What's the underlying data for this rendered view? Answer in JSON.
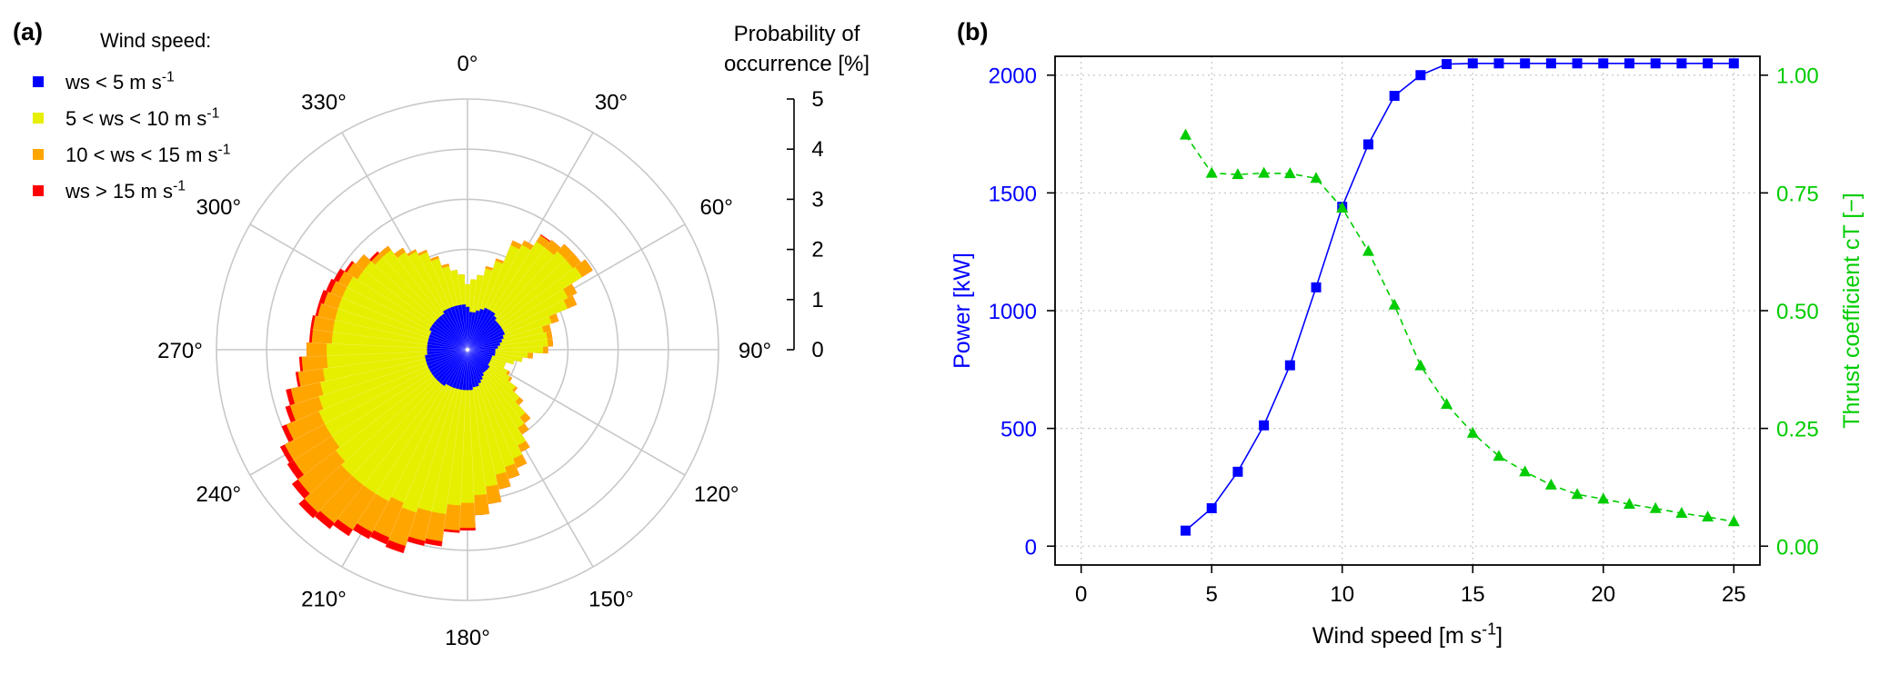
{
  "panel_a_label": "(a)",
  "panel_b_label": "(b)",
  "chart_data": [
    {
      "type": "wind-rose",
      "panel": "(a)",
      "legend_title": "Wind speed:",
      "legend": [
        {
          "name": "ws < 5 m s-1",
          "color": "#0000ff",
          "base": "ws < 5 m s",
          "sup": "-1"
        },
        {
          "name": "5 < ws < 10 m s-1",
          "color": "#e6ef00",
          "base": "5 < ws < 10 m s",
          "sup": "-1"
        },
        {
          "name": "10 < ws < 15 m s-1",
          "color": "#ffa500",
          "base": "10 < ws < 15 m s",
          "sup": "-1"
        },
        {
          "name": "ws > 15 m s-1",
          "color": "#ff0000",
          "base": "ws > 15 m s",
          "sup": "-1"
        }
      ],
      "scale_title_line1": "Probability of",
      "scale_title_line2": "occurrence [%]",
      "radial_range": [
        0,
        5
      ],
      "radial_ticks": [
        0,
        1,
        2,
        3,
        4,
        5
      ],
      "direction_labels": [
        "0°",
        "30°",
        "60°",
        "90°",
        "120°",
        "150°",
        "180°",
        "210°",
        "240°",
        "270°",
        "300°",
        "330°"
      ],
      "direction_angles": [
        0,
        30,
        60,
        90,
        120,
        150,
        180,
        210,
        240,
        270,
        300,
        330
      ],
      "sector_width_deg": 5,
      "sector_directions": [
        0,
        5,
        10,
        15,
        20,
        25,
        30,
        35,
        40,
        45,
        50,
        55,
        60,
        65,
        70,
        75,
        80,
        85,
        90,
        95,
        100,
        105,
        110,
        115,
        120,
        125,
        130,
        135,
        140,
        145,
        150,
        155,
        160,
        165,
        170,
        175,
        180,
        185,
        190,
        195,
        200,
        205,
        210,
        215,
        220,
        225,
        230,
        235,
        240,
        245,
        250,
        255,
        260,
        265,
        270,
        275,
        280,
        285,
        290,
        295,
        300,
        305,
        310,
        315,
        320,
        325,
        330,
        335,
        340,
        345,
        350,
        355
      ],
      "cumulative_series": [
        {
          "name": "ws < 5 m s-1",
          "color": "#0000ff",
          "values": [
            0.85,
            0.75,
            0.75,
            0.8,
            0.85,
            0.9,
            0.9,
            0.9,
            0.85,
            0.8,
            0.8,
            0.8,
            0.8,
            0.8,
            0.75,
            0.7,
            0.65,
            0.6,
            0.55,
            0.55,
            0.55,
            0.5,
            0.5,
            0.5,
            0.5,
            0.5,
            0.55,
            0.55,
            0.55,
            0.55,
            0.6,
            0.65,
            0.7,
            0.75,
            0.75,
            0.8,
            0.8,
            0.8,
            0.8,
            0.8,
            0.8,
            0.8,
            0.8,
            0.85,
            0.85,
            0.85,
            0.85,
            0.85,
            0.85,
            0.85,
            0.85,
            0.85,
            0.85,
            0.8,
            0.8,
            0.8,
            0.8,
            0.8,
            0.8,
            0.8,
            0.85,
            0.85,
            0.85,
            0.85,
            0.85,
            0.85,
            0.9,
            0.9,
            0.9,
            0.9,
            0.9,
            0.9
          ]
        },
        {
          "name": "5 < ws < 10 m s-1",
          "color": "#e6ef00",
          "values": [
            1.3,
            1.4,
            1.5,
            1.65,
            1.85,
            2.25,
            2.35,
            2.55,
            2.55,
            2.65,
            2.65,
            2.7,
            2.25,
            2.15,
            1.75,
            1.55,
            1.6,
            1.6,
            1.5,
            1.2,
            1.1,
            0.95,
            0.8,
            0.8,
            0.9,
            1.0,
            1.2,
            1.4,
            1.7,
            1.85,
            2.15,
            2.35,
            2.45,
            2.55,
            2.75,
            2.9,
            3.05,
            3.1,
            3.3,
            3.3,
            3.4,
            3.3,
            3.4,
            3.4,
            3.4,
            3.4,
            3.3,
            3.2,
            3.2,
            3.2,
            3.1,
            3.0,
            2.9,
            2.8,
            2.8,
            2.7,
            2.7,
            2.7,
            2.7,
            2.7,
            2.7,
            2.6,
            2.6,
            2.5,
            2.5,
            2.3,
            2.2,
            2.1,
            1.9,
            1.7,
            1.6,
            1.5
          ]
        },
        {
          "name": "10 < ws < 15 m s-1",
          "color": "#ffa500",
          "values": [
            1.3,
            1.4,
            1.5,
            1.7,
            1.9,
            2.35,
            2.45,
            2.7,
            2.75,
            2.85,
            2.85,
            2.95,
            2.45,
            2.35,
            1.9,
            1.7,
            1.7,
            1.7,
            1.6,
            1.3,
            1.1,
            0.95,
            0.8,
            0.8,
            0.95,
            1.05,
            1.25,
            1.5,
            1.85,
            2.0,
            2.3,
            2.55,
            2.7,
            2.85,
            3.1,
            3.3,
            3.55,
            3.6,
            3.85,
            3.9,
            4.1,
            4.05,
            4.1,
            4.25,
            4.35,
            4.4,
            4.25,
            4.1,
            4.1,
            3.9,
            3.7,
            3.6,
            3.4,
            3.3,
            3.2,
            3.1,
            3.1,
            3.05,
            3.0,
            2.95,
            2.9,
            2.85,
            2.8,
            2.6,
            2.6,
            2.4,
            2.25,
            2.15,
            1.95,
            1.75,
            1.6,
            1.5
          ]
        },
        {
          "name": "ws > 15 m s-1",
          "color": "#ff0000",
          "values": [
            1.3,
            1.4,
            1.5,
            1.7,
            1.9,
            2.35,
            2.45,
            2.72,
            2.75,
            2.85,
            2.85,
            2.95,
            2.45,
            2.35,
            1.9,
            1.7,
            1.7,
            1.7,
            1.6,
            1.3,
            1.1,
            0.95,
            0.8,
            0.8,
            0.95,
            1.05,
            1.25,
            1.5,
            1.85,
            2.0,
            2.3,
            2.55,
            2.7,
            2.85,
            3.1,
            3.3,
            3.6,
            3.65,
            3.95,
            4.0,
            4.25,
            4.2,
            4.25,
            4.4,
            4.5,
            4.55,
            4.4,
            4.25,
            4.2,
            4.0,
            3.8,
            3.7,
            3.45,
            3.35,
            3.2,
            3.15,
            3.15,
            3.1,
            3.1,
            3.05,
            3.0,
            2.9,
            2.8,
            2.65,
            2.6,
            2.4,
            2.25,
            2.15,
            1.95,
            1.75,
            1.6,
            1.5
          ]
        }
      ]
    },
    {
      "type": "line",
      "panel": "(b)",
      "xlabel_base": "Wind speed [m s",
      "xlabel_sup": "-1",
      "xlabel_end": "]",
      "xlim": [
        -1,
        26
      ],
      "xticks": [
        0,
        5,
        10,
        15,
        20,
        25
      ],
      "ylabel_left": "Power [kW]",
      "ylim_left": [
        -80,
        2080
      ],
      "yticks_left": [
        0,
        500,
        1000,
        1500,
        2000
      ],
      "ylabel_right": "Thrust coefficient cT [−]",
      "ylim_right": [
        -0.04,
        1.04
      ],
      "yticks_right": [
        "0.00",
        "0.25",
        "0.50",
        "0.75",
        "1.00"
      ],
      "grid": true,
      "series": [
        {
          "name": "Power",
          "axis": "left",
          "color": "#0000ff",
          "marker": "square",
          "linestyle": "solid",
          "x": [
            4,
            5,
            6,
            7,
            8,
            9,
            10,
            11,
            12,
            13,
            14,
            15,
            16,
            17,
            18,
            19,
            20,
            21,
            22,
            23,
            24,
            25
          ],
          "y": [
            66,
            161,
            316,
            513,
            768,
            1099,
            1441,
            1706,
            1912,
            2000,
            2047,
            2050,
            2050,
            2050,
            2050,
            2050,
            2050,
            2050,
            2050,
            2050,
            2050,
            2050
          ]
        },
        {
          "name": "Thrust coefficient",
          "axis": "right",
          "color": "#00cc00",
          "marker": "triangle",
          "linestyle": "dashed",
          "x": [
            4,
            5,
            6,
            7,
            8,
            9,
            10,
            11,
            12,
            13,
            14,
            15,
            16,
            17,
            18,
            19,
            20,
            21,
            22,
            23,
            24,
            25
          ],
          "y": [
            0.873,
            0.792,
            0.789,
            0.792,
            0.791,
            0.781,
            0.718,
            0.626,
            0.512,
            0.383,
            0.301,
            0.24,
            0.191,
            0.158,
            0.13,
            0.11,
            0.1,
            0.089,
            0.08,
            0.07,
            0.062,
            0.052
          ]
        }
      ]
    }
  ]
}
